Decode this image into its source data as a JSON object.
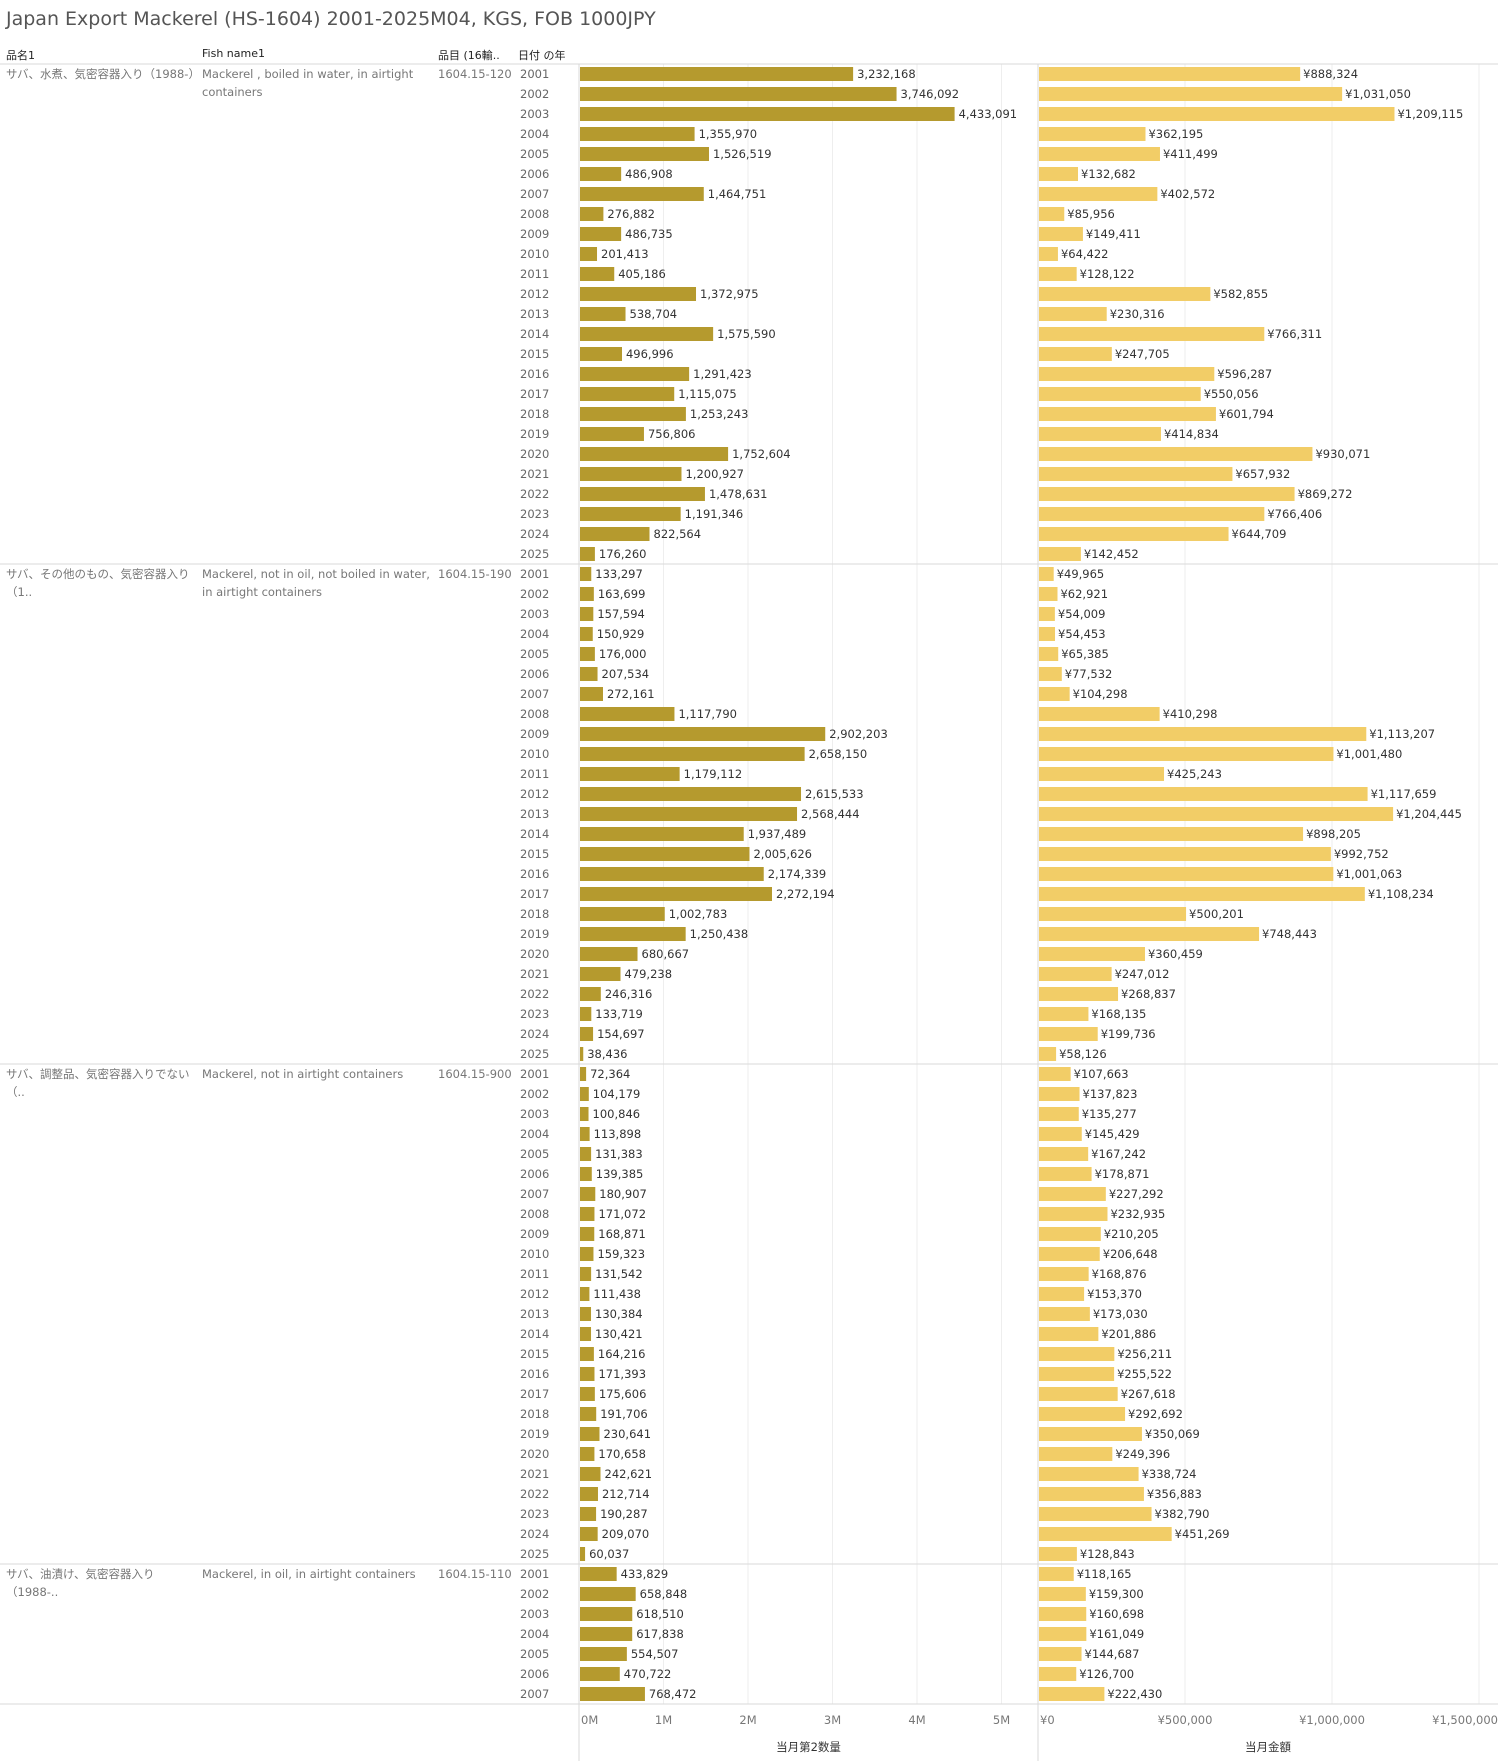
{
  "title": "Japan Export Mackerel (HS-1604) 2001-2025M04, KGS, FOB 1000JPY",
  "headers": {
    "col1": "品名1",
    "col2": "Fish name1",
    "col3": "品目 (16輸..",
    "col4": "日付 の年"
  },
  "colors": {
    "quantity_bar": "#b59a2e",
    "value_bar": "#f2cd67",
    "label": "#333333",
    "header_text": "#777777",
    "gridline": "#eeeeee",
    "divider": "#d9d9d9"
  },
  "chart_data": {
    "type": "bar",
    "orientation": "horizontal",
    "panels": [
      {
        "measure": "当月第2数量",
        "axis_ticks": [
          "0M",
          "1M",
          "2M",
          "3M",
          "4M",
          "5M"
        ],
        "xlim": [
          0,
          5000000
        ]
      },
      {
        "measure": "当月金額",
        "axis_ticks": [
          "¥0",
          "¥500,000",
          "¥1,000,000",
          "¥1,500,000"
        ],
        "xlim": [
          0,
          1500000
        ]
      }
    ],
    "groups": [
      {
        "name_jp": "サバ、水煮、気密容器入り（1988-）",
        "name_en": "Mackerel , boiled in water, in airtight containers",
        "code": "1604.15-120",
        "years": [
          "2001",
          "2002",
          "2003",
          "2004",
          "2005",
          "2006",
          "2007",
          "2008",
          "2009",
          "2010",
          "2011",
          "2012",
          "2013",
          "2014",
          "2015",
          "2016",
          "2017",
          "2018",
          "2019",
          "2020",
          "2021",
          "2022",
          "2023",
          "2024",
          "2025"
        ],
        "quantity": [
          3232168,
          3746092,
          4433091,
          1355970,
          1526519,
          486908,
          1464751,
          276882,
          486735,
          201413,
          405186,
          1372975,
          538704,
          1575590,
          496996,
          1291423,
          1115075,
          1253243,
          756806,
          1752604,
          1200927,
          1478631,
          1191346,
          822564,
          176260
        ],
        "value": [
          888324,
          1031050,
          1209115,
          362195,
          411499,
          132682,
          402572,
          85956,
          149411,
          64422,
          128122,
          582855,
          230316,
          766311,
          247705,
          596287,
          550056,
          601794,
          414834,
          930071,
          657932,
          869272,
          766406,
          644709,
          142452
        ]
      },
      {
        "name_jp": "サバ、その他のもの、気密容器入り（1..",
        "name_en": "Mackerel, not in oil, not boiled in water, in airtight containers",
        "code": "1604.15-190",
        "years": [
          "2001",
          "2002",
          "2003",
          "2004",
          "2005",
          "2006",
          "2007",
          "2008",
          "2009",
          "2010",
          "2011",
          "2012",
          "2013",
          "2014",
          "2015",
          "2016",
          "2017",
          "2018",
          "2019",
          "2020",
          "2021",
          "2022",
          "2023",
          "2024",
          "2025"
        ],
        "quantity": [
          133297,
          163699,
          157594,
          150929,
          176000,
          207534,
          272161,
          1117790,
          2902203,
          2658150,
          1179112,
          2615533,
          2568444,
          1937489,
          2005626,
          2174339,
          2272194,
          1002783,
          1250438,
          680667,
          479238,
          246316,
          133719,
          154697,
          38436
        ],
        "value": [
          49965,
          62921,
          54009,
          54453,
          65385,
          77532,
          104298,
          410298,
          1113207,
          1001480,
          425243,
          1117659,
          1204445,
          898205,
          992752,
          1001063,
          1108234,
          500201,
          748443,
          360459,
          247012,
          268837,
          168135,
          199736,
          58126
        ]
      },
      {
        "name_jp": "サバ、調整品、気密容器入りでない（..",
        "name_en": "Mackerel, not in airtight containers",
        "code": "1604.15-900",
        "years": [
          "2001",
          "2002",
          "2003",
          "2004",
          "2005",
          "2006",
          "2007",
          "2008",
          "2009",
          "2010",
          "2011",
          "2012",
          "2013",
          "2014",
          "2015",
          "2016",
          "2017",
          "2018",
          "2019",
          "2020",
          "2021",
          "2022",
          "2023",
          "2024",
          "2025"
        ],
        "quantity": [
          72364,
          104179,
          100846,
          113898,
          131383,
          139385,
          180907,
          171072,
          168871,
          159323,
          131542,
          111438,
          130384,
          130421,
          164216,
          171393,
          175606,
          191706,
          230641,
          170658,
          242621,
          212714,
          190287,
          209070,
          60037
        ],
        "value": [
          107663,
          137823,
          135277,
          145429,
          167242,
          178871,
          227292,
          232935,
          210205,
          206648,
          168876,
          153370,
          173030,
          201886,
          256211,
          255522,
          267618,
          292692,
          350069,
          249396,
          338724,
          356883,
          382790,
          451269,
          128843
        ]
      },
      {
        "name_jp": "サバ、油漬け、気密容器入り（1988-..",
        "name_en": "Mackerel, in oil, in airtight containers",
        "code": "1604.15-110",
        "years": [
          "2001",
          "2002",
          "2003",
          "2004",
          "2005",
          "2006",
          "2007"
        ],
        "quantity": [
          433829,
          658848,
          618510,
          617838,
          554507,
          470722,
          768472
        ],
        "value": [
          118165,
          159300,
          160698,
          161049,
          144687,
          126700,
          222430
        ]
      }
    ]
  }
}
